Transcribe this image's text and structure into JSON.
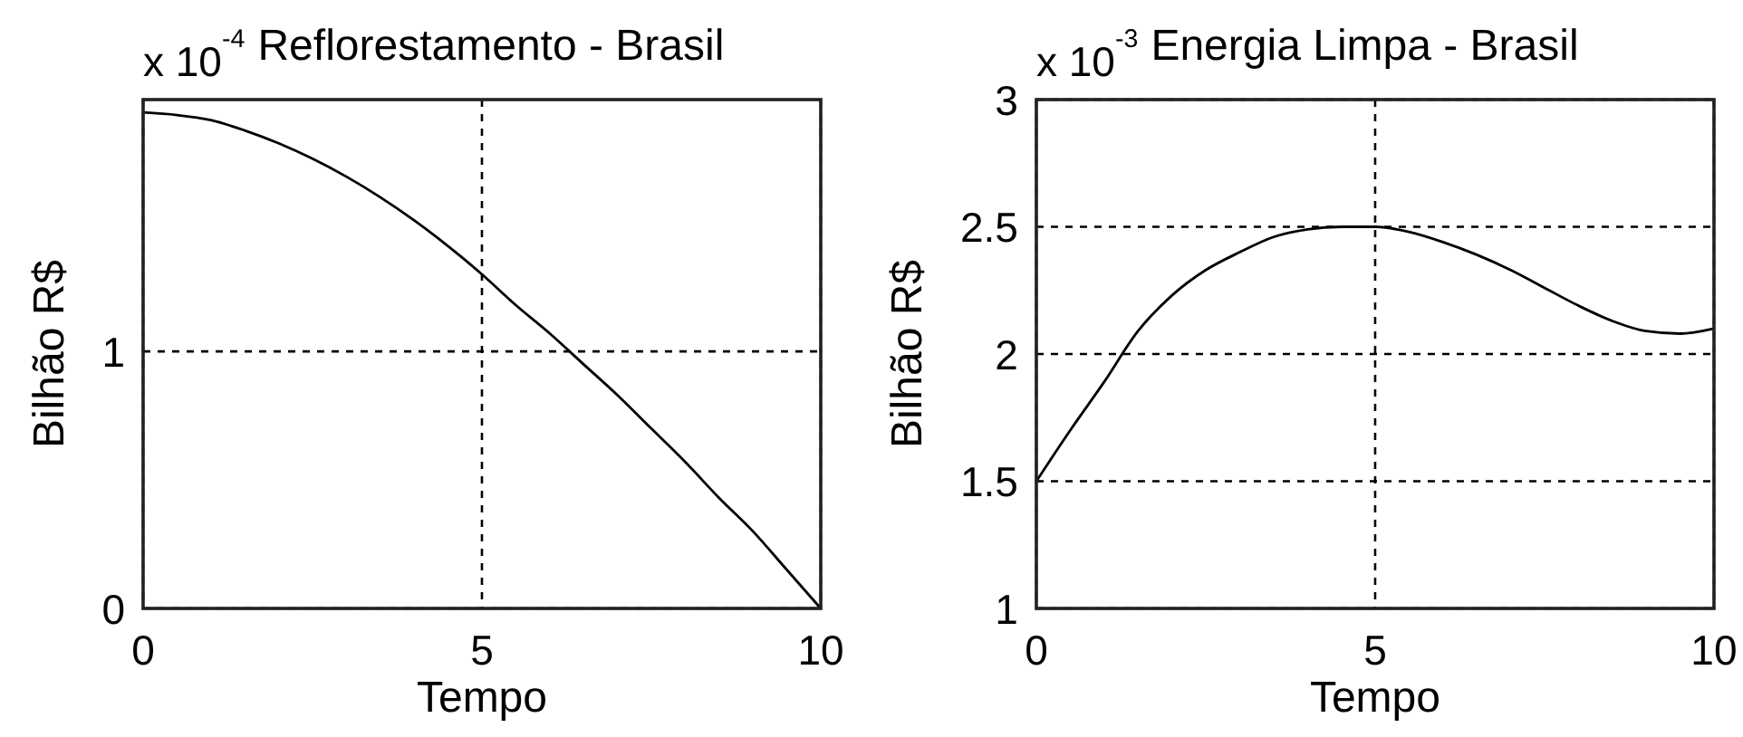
{
  "chart_data": [
    {
      "type": "line",
      "title": "Reflorestamento - Brasil",
      "xlabel": "Tempo",
      "ylabel": "Bilhão R$",
      "annotations": [
        "x 10$^{-4}$"
      ],
      "x": [
        0,
        0.5,
        1,
        1.5,
        2,
        2.5,
        3,
        3.5,
        4,
        4.5,
        5,
        5.5,
        6,
        6.5,
        7,
        7.5,
        8,
        8.5,
        9,
        9.5,
        10
      ],
      "series": [
        {
          "color": "#000000",
          "values": [
            1.93,
            1.92,
            1.9,
            1.86,
            1.81,
            1.75,
            1.68,
            1.6,
            1.51,
            1.41,
            1.3,
            1.18,
            1.07,
            0.95,
            0.83,
            0.7,
            0.57,
            0.43,
            0.3,
            0.15,
            0
          ]
        }
      ],
      "xlim": [
        0,
        10
      ],
      "xticks": [
        0,
        5,
        10
      ],
      "ylim": [
        0,
        1.98
      ],
      "yticks": [
        0,
        1
      ],
      "grid": true
    },
    {
      "type": "line",
      "title": "Energia Limpa - Brasil",
      "xlabel": "Tempo",
      "ylabel": "Bilhão R$",
      "annotations": [
        "x 10$^{-3}$"
      ],
      "x": [
        0,
        0.5,
        1,
        1.5,
        2,
        2.5,
        3,
        3.5,
        4,
        4.5,
        5,
        5.5,
        6,
        6.5,
        7,
        7.5,
        8,
        8.5,
        9,
        9.5,
        10
      ],
      "series": [
        {
          "color": "#000000",
          "values": [
            1.5,
            1.7,
            1.89,
            2.09,
            2.23,
            2.33,
            2.4,
            2.46,
            2.49,
            2.5,
            2.5,
            2.48,
            2.44,
            2.39,
            2.33,
            2.26,
            2.19,
            2.13,
            2.09,
            2.08,
            2.1
          ]
        }
      ],
      "xlim": [
        0,
        10
      ],
      "xticks": [
        0,
        5,
        10
      ],
      "ylim": [
        1,
        3
      ],
      "yticks": [
        1,
        1.5,
        2,
        2.5,
        3
      ],
      "grid": true
    }
  ]
}
